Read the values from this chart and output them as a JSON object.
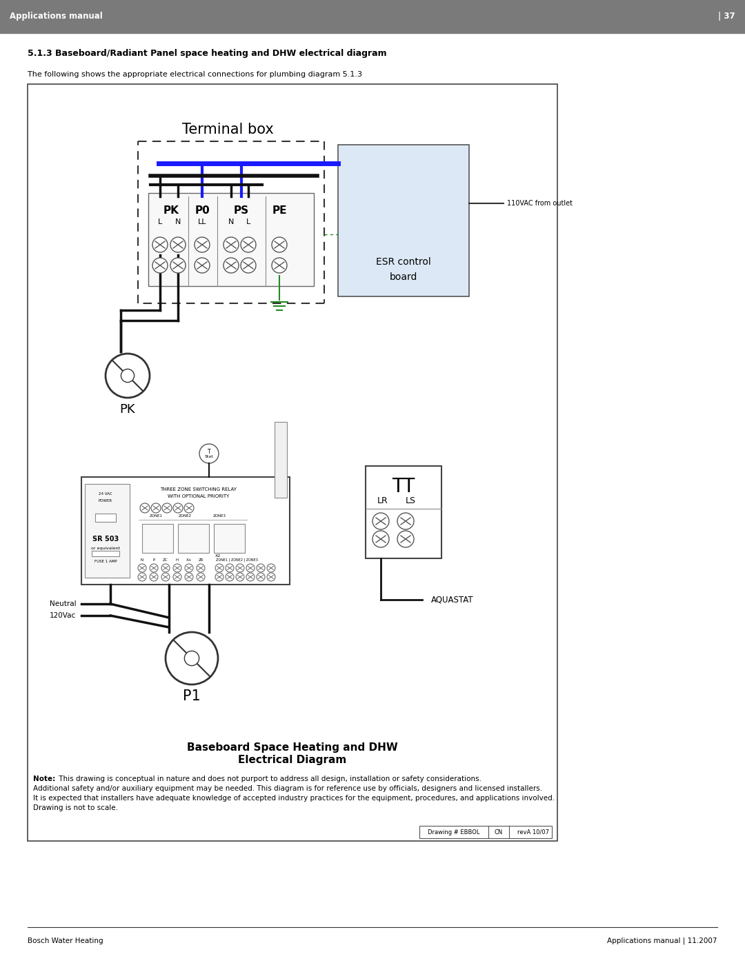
{
  "page_title": "Applications manual",
  "page_number": "| 37",
  "section_title": "5.1.3 Baseboard/Radiant Panel space heating and DHW electrical diagram",
  "description": "The following shows the appropriate electrical connections for plumbing diagram 5.1.3",
  "diagram_title_line1": "Baseboard Space Heating and DHW",
  "diagram_title_line2": "Electrical Diagram",
  "note_line1_bold": "Note:",
  "note_line1_rest": " This drawing is conceptual in nature and does not purport to address all design, installation or safety considerations.",
  "note_line2": "Additional safety and/or auxiliary equipment may be needed. This diagram is for reference use by officials, designers and licensed installers.",
  "note_line3": "It is expected that installers have adequate knowledge of accepted industry practices for the equipment, procedures, and applications involved.",
  "note_line4": "Drawing is not to scale.",
  "draw_label": "Drawing # EBBOL",
  "draw_cn": "CN",
  "draw_rev": "revA 10/07",
  "footer_left": "Bosch Water Heating",
  "footer_right": "Applications manual | 11.2007",
  "header_bg": "#7a7a7a",
  "header_text_color": "#ffffff",
  "body_bg": "#ffffff",
  "blue_color": "#1a1aff",
  "light_blue_bg": "#dce8f5",
  "green_color": "#228B22",
  "black": "#111111",
  "gray_border": "#555555",
  "light_gray": "#f0f0f0"
}
